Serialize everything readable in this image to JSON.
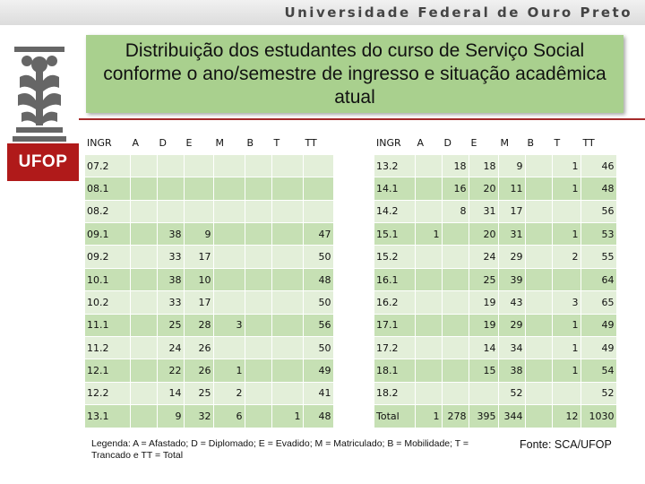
{
  "header": {
    "university": "Universidade Federal de Ouro Preto"
  },
  "logo": {
    "badge_text": "UFOP"
  },
  "title": "Distribuição dos estudantes do curso de Serviço Social conforme o ano/semestre de ingresso e situação acadêmica atual",
  "left_table": {
    "headers": [
      "INGR",
      "A",
      "D",
      "E",
      "M",
      "B",
      "T",
      "TT"
    ],
    "rows": [
      [
        "07.2",
        "",
        "",
        "",
        "",
        "",
        "",
        ""
      ],
      [
        "08.1",
        "",
        "",
        "",
        "",
        "",
        "",
        ""
      ],
      [
        "08.2",
        "",
        "",
        "",
        "",
        "",
        "",
        ""
      ],
      [
        "09.1",
        "",
        "38",
        "9",
        "",
        "",
        "",
        "47"
      ],
      [
        "09.2",
        "",
        "33",
        "17",
        "",
        "",
        "",
        "50"
      ],
      [
        "10.1",
        "",
        "38",
        "10",
        "",
        "",
        "",
        "48"
      ],
      [
        "10.2",
        "",
        "33",
        "17",
        "",
        "",
        "",
        "50"
      ],
      [
        "11.1",
        "",
        "25",
        "28",
        "3",
        "",
        "",
        "56"
      ],
      [
        "11.2",
        "",
        "24",
        "26",
        "",
        "",
        "",
        "50"
      ],
      [
        "12.1",
        "",
        "22",
        "26",
        "1",
        "",
        "",
        "49"
      ],
      [
        "12.2",
        "",
        "14",
        "25",
        "2",
        "",
        "",
        "41"
      ],
      [
        "13.1",
        "",
        "9",
        "32",
        "6",
        "",
        "1",
        "48"
      ]
    ]
  },
  "right_table": {
    "headers": [
      "INGR",
      "A",
      "D",
      "E",
      "M",
      "B",
      "T",
      "TT"
    ],
    "rows": [
      [
        "13.2",
        "",
        "18",
        "18",
        "9",
        "",
        "1",
        "46"
      ],
      [
        "14.1",
        "",
        "16",
        "20",
        "11",
        "",
        "1",
        "48"
      ],
      [
        "14.2",
        "",
        "8",
        "31",
        "17",
        "",
        "",
        "56"
      ],
      [
        "15.1",
        "1",
        "",
        "20",
        "31",
        "",
        "1",
        "53"
      ],
      [
        "15.2",
        "",
        "",
        "24",
        "29",
        "",
        "2",
        "55"
      ],
      [
        "16.1",
        "",
        "",
        "25",
        "39",
        "",
        "",
        "64"
      ],
      [
        "16.2",
        "",
        "",
        "19",
        "43",
        "",
        "3",
        "65"
      ],
      [
        "17.1",
        "",
        "",
        "19",
        "29",
        "",
        "1",
        "49"
      ],
      [
        "17.2",
        "",
        "",
        "14",
        "34",
        "",
        "1",
        "49"
      ],
      [
        "18.1",
        "",
        "",
        "15",
        "38",
        "",
        "1",
        "54"
      ],
      [
        "18.2",
        "",
        "",
        "",
        "52",
        "",
        "",
        "52"
      ],
      [
        "Total",
        "1",
        "278",
        "395",
        "344",
        "",
        "12",
        "1030"
      ]
    ]
  },
  "legend": "Legenda: A = Afastado; D = Diplomado; E = Evadido; M = Matriculado; B = Mobilidade; T = Trancado e TT = Total",
  "source": "Fonte: SCA/UFOP",
  "colors": {
    "title_bg": "#a9d08e",
    "row_light": "#e3efd9",
    "row_dark": "#c6e0b4",
    "ufop_red": "#b01a1a"
  }
}
